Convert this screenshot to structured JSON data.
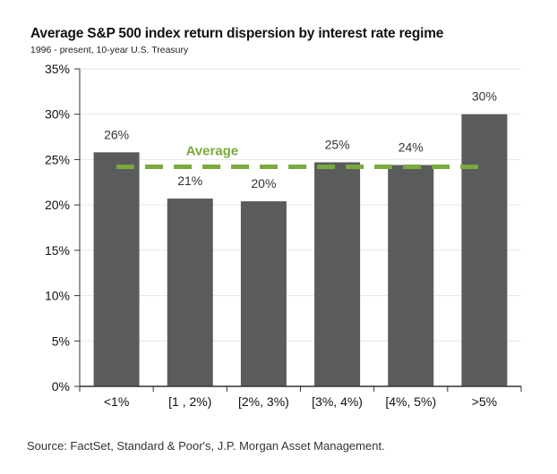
{
  "title": "Average S&P 500 index return dispersion by interest rate regime",
  "subtitle": "1996 - present, 10-year U.S. Treasury",
  "source": "Source: FactSet, Standard & Poor's, J.P. Morgan Asset Management.",
  "colors": {
    "bar": "#595b5d",
    "average": "#7aaa3b",
    "axis": "#333333",
    "grid": "#e6e6e6"
  },
  "chart_data": {
    "type": "bar",
    "categories": [
      "<1%",
      "[1 , 2%)",
      "[2%, 3%)",
      "[3%, 4%)",
      "[4%, 5%)",
      ">5%"
    ],
    "values": [
      25.8,
      20.7,
      20.4,
      24.7,
      24.4,
      30.0
    ],
    "value_labels": [
      "26%",
      "21%",
      "20%",
      "25%",
      "24%",
      "30%"
    ],
    "average": {
      "label": "Average",
      "value": 24.2
    },
    "ylim": [
      0,
      35
    ],
    "yticks": [
      0,
      5,
      10,
      15,
      20,
      25,
      30,
      35
    ],
    "ytick_labels": [
      "0%",
      "5%",
      "10%",
      "15%",
      "20%",
      "25%",
      "30%",
      "35%"
    ],
    "xlabel": "",
    "ylabel": "",
    "grid": true
  }
}
